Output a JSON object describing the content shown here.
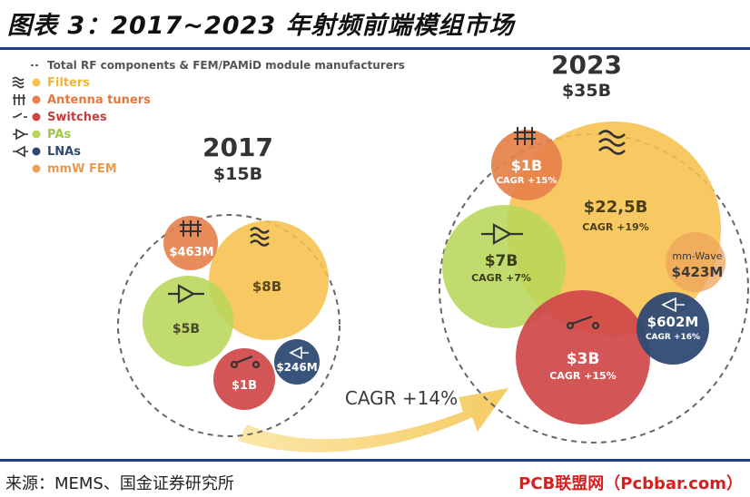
{
  "title": "图表 3：2017~2023 年射频前端模组市场",
  "source": "来源：MEMS、国金证券研究所",
  "watermark": "PCB联盟网（Pcbbar.com）",
  "colors": {
    "filters": "#f7c14d",
    "antenna": "#e6804a",
    "switches": "#cf4748",
    "pas": "#b9d65a",
    "lnas": "#2e4a73",
    "mmw": "#eda35a",
    "dash": "#666666",
    "arrow": "#f6d77f",
    "rule": "#1f3f86"
  },
  "chart_data": {
    "type": "bubble",
    "legend": [
      {
        "key": "total",
        "label": "Total RF components & FEM/PAMiD module manufacturers",
        "icon": "dashed-line-icon"
      },
      {
        "key": "filters",
        "label": "Filters",
        "icon": "filter-wave-icon"
      },
      {
        "key": "antenna",
        "label": "Antenna tuners",
        "icon": "antenna-tuner-icon"
      },
      {
        "key": "switches",
        "label": "Switches",
        "icon": "switch-icon"
      },
      {
        "key": "pas",
        "label": "PAs",
        "icon": "pa-triangle-icon"
      },
      {
        "key": "lnas",
        "label": "LNAs",
        "icon": "lna-triangle-icon"
      },
      {
        "key": "mmw",
        "label": "mmW FEM",
        "icon": ""
      }
    ],
    "years": [
      {
        "year": "2017",
        "total": "$15B",
        "segments": [
          {
            "key": "filters",
            "value": "$8B",
            "value_musd": 8000
          },
          {
            "key": "antenna",
            "value": "$463M",
            "value_musd": 463
          },
          {
            "key": "pas",
            "value": "$5B",
            "value_musd": 5000
          },
          {
            "key": "switches",
            "value": "$1B",
            "value_musd": 1000
          },
          {
            "key": "lnas",
            "value": "$246M",
            "value_musd": 246
          }
        ]
      },
      {
        "year": "2023",
        "total": "$35B",
        "segments": [
          {
            "key": "filters",
            "value": "$22,5B",
            "cagr": "CAGR +19%",
            "value_musd": 22500
          },
          {
            "key": "antenna",
            "value": "$1B",
            "cagr": "CAGR +15%",
            "value_musd": 1000
          },
          {
            "key": "pas",
            "value": "$7B",
            "cagr": "CAGR +7%",
            "value_musd": 7000
          },
          {
            "key": "switches",
            "value": "$3B",
            "cagr": "CAGR +15%",
            "value_musd": 3000
          },
          {
            "key": "lnas",
            "value": "$602M",
            "cagr": "CAGR +16%",
            "value_musd": 602
          },
          {
            "key": "mmw",
            "label": "mm-Wave",
            "value": "$423M",
            "value_musd": 423
          }
        ]
      }
    ],
    "overall_cagr": "CAGR +14%"
  }
}
